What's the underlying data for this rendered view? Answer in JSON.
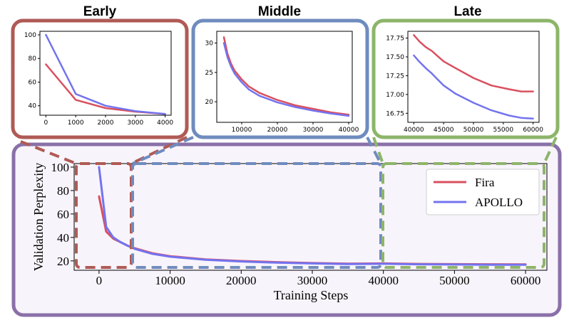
{
  "colors": {
    "fira": "#d9505f",
    "apollo": "#7373ef",
    "early_box": "#b05a55",
    "middle_box": "#6f8cbf",
    "late_box": "#8db56a",
    "outer_box": "#8a70a8"
  },
  "chart_data": [
    {
      "panel": "main",
      "type": "line",
      "title": "",
      "xlabel": "Training Steps",
      "ylabel": "Validation Perplexity",
      "xlim": [
        -3500,
        63000
      ],
      "ylim": [
        12,
        103
      ],
      "xticks": [
        0,
        10000,
        20000,
        30000,
        40000,
        50000,
        60000
      ],
      "yticks": [
        20,
        40,
        60,
        80,
        100
      ],
      "grid": false,
      "legend": "top-right",
      "series": [
        {
          "name": "Fira",
          "x": [
            0,
            1000,
            2000,
            3000,
            4000,
            5000,
            7500,
            10000,
            15000,
            20000,
            25000,
            30000,
            35000,
            40000,
            45000,
            50000,
            55000,
            60000
          ],
          "y": [
            75,
            45,
            39,
            36,
            33,
            30.8,
            26.5,
            24,
            21.3,
            19.9,
            18.9,
            18.1,
            17.6,
            17.8,
            17.4,
            17.2,
            17.1,
            17.03
          ]
        },
        {
          "name": "APOLLO",
          "x": [
            0,
            1000,
            2000,
            3000,
            4000,
            5000,
            7500,
            10000,
            15000,
            20000,
            25000,
            30000,
            35000,
            40000,
            45000,
            50000,
            55000,
            60000
          ],
          "y": [
            100,
            49,
            40,
            36,
            33,
            30.3,
            26,
            23.6,
            20.9,
            19.5,
            18.5,
            17.8,
            17.3,
            17.5,
            17.1,
            16.9,
            16.75,
            16.68
          ]
        }
      ]
    },
    {
      "panel": "Early",
      "type": "line",
      "title": "Early",
      "xlim": [
        -200,
        4200
      ],
      "ylim": [
        32,
        103
      ],
      "xticks": [
        0,
        1000,
        2000,
        3000,
        4000
      ],
      "yticks": [
        40,
        60,
        80,
        100
      ],
      "series": [
        {
          "name": "Fira",
          "x": [
            0,
            1000,
            2000,
            3000,
            4000
          ],
          "y": [
            75,
            45,
            38,
            35,
            33
          ]
        },
        {
          "name": "APOLLO",
          "x": [
            0,
            1000,
            2000,
            3000,
            4000
          ],
          "y": [
            100,
            50,
            40,
            35.5,
            33
          ]
        }
      ]
    },
    {
      "panel": "Middle",
      "type": "line",
      "title": "Middle",
      "xlim": [
        3000,
        41000
      ],
      "ylim": [
        16.5,
        32
      ],
      "xticks": [
        10000,
        20000,
        30000,
        40000
      ],
      "yticks": [
        20,
        25,
        30
      ],
      "series": [
        {
          "name": "Fira",
          "x": [
            5000,
            6000,
            7000,
            8000,
            10000,
            12000,
            15000,
            20000,
            25000,
            30000,
            35000,
            40000
          ],
          "y": [
            31,
            28.2,
            26.5,
            25.3,
            23.8,
            22.6,
            21.5,
            20.3,
            19.4,
            18.8,
            18.2,
            17.8
          ]
        },
        {
          "name": "APOLLO",
          "x": [
            5000,
            6000,
            7000,
            8000,
            10000,
            12000,
            15000,
            20000,
            25000,
            30000,
            35000,
            40000
          ],
          "y": [
            30,
            27.6,
            26,
            24.8,
            23.3,
            22.1,
            21,
            19.9,
            19.1,
            18.5,
            18,
            17.6
          ]
        }
      ]
    },
    {
      "panel": "Late",
      "type": "line",
      "title": "Late",
      "xlim": [
        39000,
        61000
      ],
      "ylim": [
        16.63,
        17.84
      ],
      "xticks": [
        40000,
        45000,
        50000,
        55000,
        60000
      ],
      "yticks": [
        16.75,
        17.0,
        17.25,
        17.5,
        17.75
      ],
      "tick_labels_y": [
        "16.75",
        "17.00",
        "17.25",
        "17.50",
        "17.75"
      ],
      "series": [
        {
          "name": "Fira",
          "x": [
            40000,
            41000,
            42000,
            43000,
            44000,
            45000,
            47000,
            50000,
            53000,
            56000,
            58000,
            60000
          ],
          "y": [
            17.79,
            17.7,
            17.63,
            17.58,
            17.51,
            17.44,
            17.35,
            17.22,
            17.12,
            17.07,
            17.04,
            17.04
          ]
        },
        {
          "name": "APOLLO",
          "x": [
            40000,
            41000,
            42000,
            43000,
            44000,
            45000,
            47000,
            50000,
            53000,
            56000,
            58000,
            60000
          ],
          "y": [
            17.52,
            17.43,
            17.35,
            17.28,
            17.2,
            17.12,
            17.01,
            16.89,
            16.79,
            16.72,
            16.69,
            16.68
          ]
        }
      ]
    }
  ]
}
